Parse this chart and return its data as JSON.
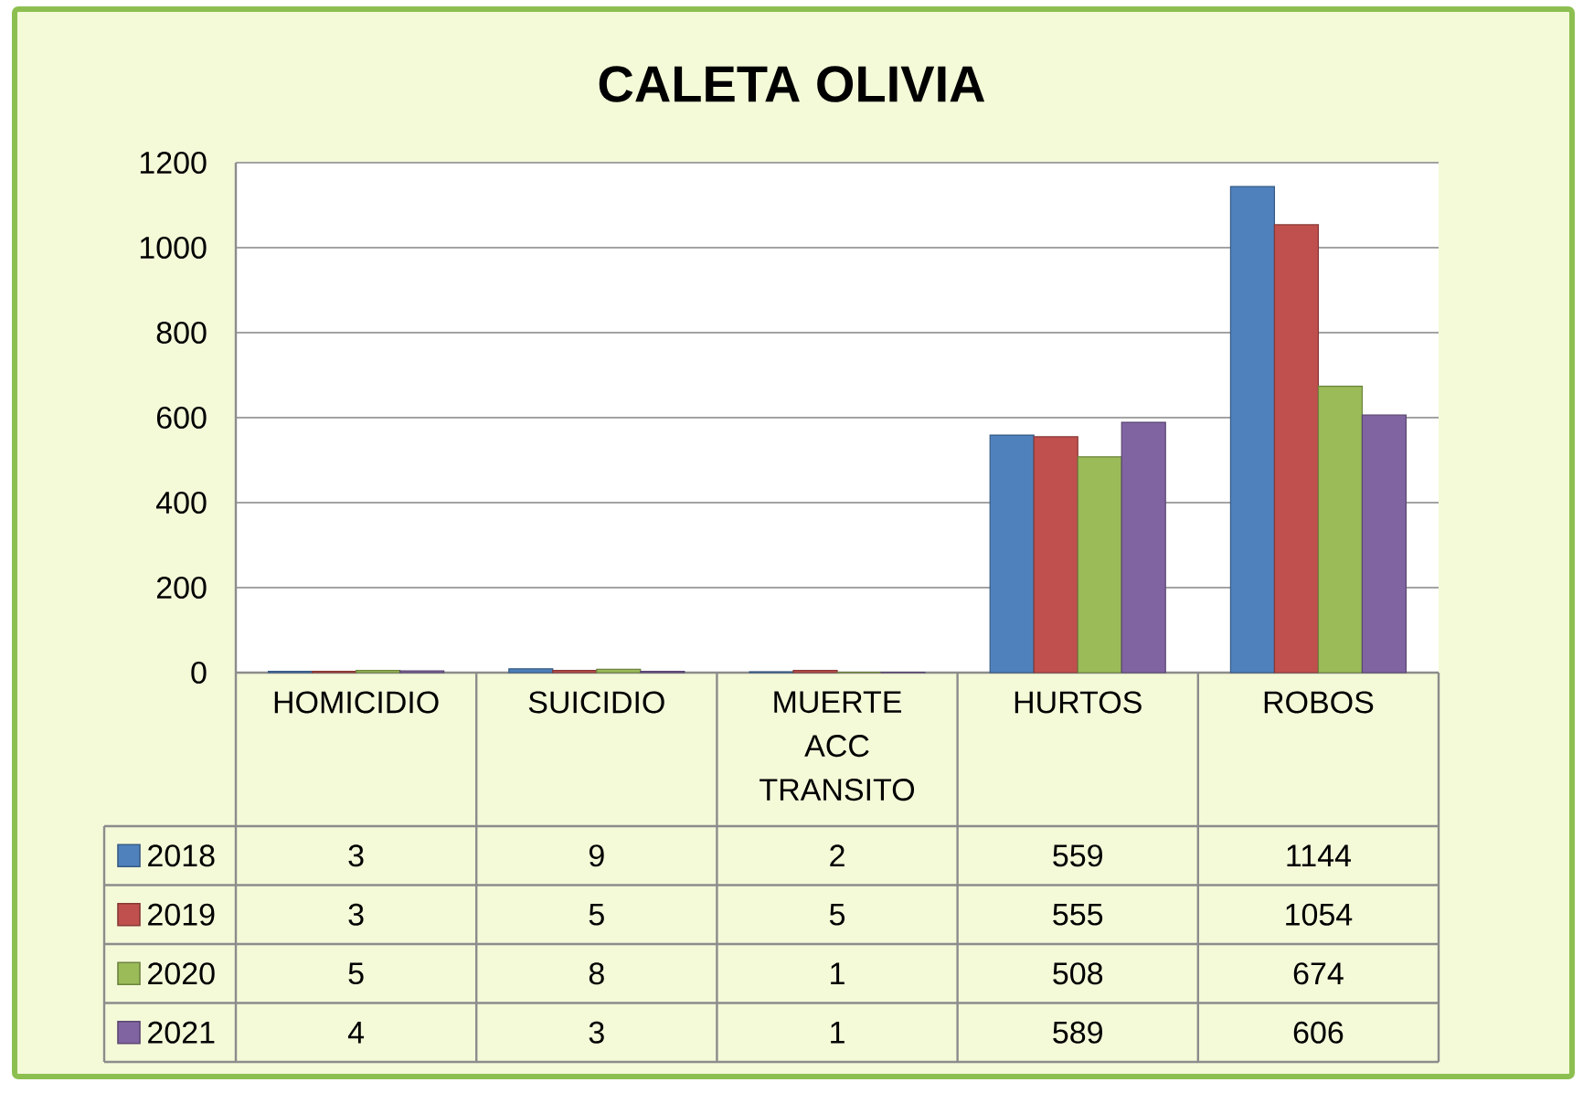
{
  "chart_data": {
    "type": "bar",
    "title": "CALETA OLIVIA",
    "categories": [
      "HOMICIDIO",
      "SUICIDIO",
      "MUERTE ACC TRANSITO",
      "HURTOS",
      "ROBOS"
    ],
    "series": [
      {
        "name": "2018",
        "color": "#4f81bd",
        "values": [
          3,
          9,
          2,
          559,
          1144
        ]
      },
      {
        "name": "2019",
        "color": "#c0504d",
        "values": [
          3,
          5,
          5,
          555,
          1054
        ]
      },
      {
        "name": "2020",
        "color": "#9bbb59",
        "values": [
          5,
          8,
          1,
          508,
          674
        ]
      },
      {
        "name": "2021",
        "color": "#8064a2",
        "values": [
          4,
          3,
          1,
          589,
          606
        ]
      }
    ],
    "ylim": [
      0,
      1200
    ],
    "yticks": [
      0,
      200,
      400,
      600,
      800,
      1000,
      1200
    ],
    "grid": "y",
    "legend": "bottom",
    "data_labels": true
  }
}
